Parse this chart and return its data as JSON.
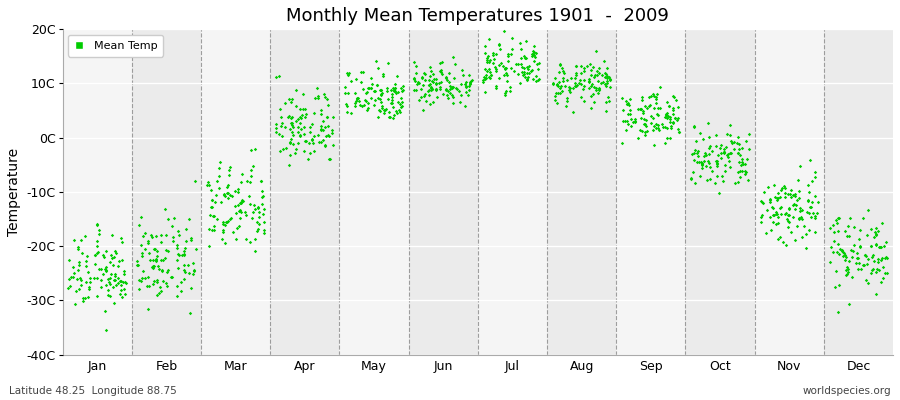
{
  "title": "Monthly Mean Temperatures 1901  -  2009",
  "ylabel": "Temperature",
  "bottom_left": "Latitude 48.25  Longitude 88.75",
  "bottom_right": "worldspecies.org",
  "legend_label": "Mean Temp",
  "dot_color": "#00cc00",
  "background_color": "#ffffff",
  "plot_bg_color": "#f0f0f0",
  "band_color_even": "#f5f5f5",
  "band_color_odd": "#ebebeb",
  "ylim": [
    -40,
    20
  ],
  "yticks": [
    20,
    10,
    0,
    -10,
    -20,
    -30,
    -40
  ],
  "ytick_labels": [
    "20C",
    "10C",
    "0C",
    "-10C",
    "-20C",
    "-30C",
    "-40C"
  ],
  "months": [
    "Jan",
    "Feb",
    "Mar",
    "Apr",
    "May",
    "Jun",
    "Jul",
    "Aug",
    "Sep",
    "Oct",
    "Nov",
    "Dec"
  ],
  "monthly_means": [
    -25,
    -23,
    -13,
    2,
    8,
    10,
    13,
    10,
    4,
    -4,
    -13,
    -21
  ],
  "monthly_stds": [
    3.5,
    3.8,
    4.2,
    3.5,
    2.5,
    2.0,
    2.0,
    2.0,
    2.2,
    3.0,
    3.5,
    3.5
  ],
  "n_years": 109,
  "dot_size": 3,
  "dpi": 100,
  "figsize": [
    9,
    4
  ]
}
